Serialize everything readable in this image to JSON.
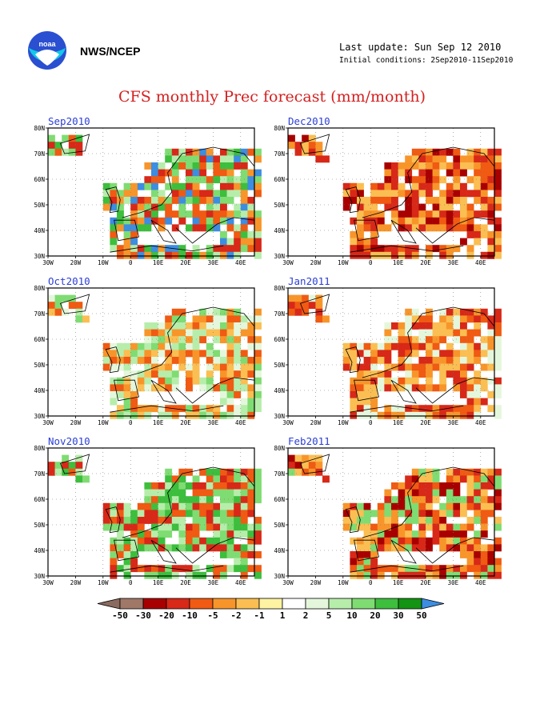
{
  "header": {
    "org_label": "NWS/NCEP",
    "last_update": "Last update: Sun Sep 12 2010",
    "initial_conditions": "Initial conditions: 2Sep2010-11Sep2010",
    "title": "CFS monthly Prec forecast (mm/month)"
  },
  "logo": {
    "icon": "noaa-logo-icon",
    "text": "noaa"
  },
  "axes": {
    "lon_labels": [
      "30W",
      "20W",
      "10W",
      "0",
      "10E",
      "20E",
      "30E",
      "40E"
    ],
    "lat_labels": [
      "30N",
      "40N",
      "50N",
      "60N",
      "70N",
      "80N"
    ]
  },
  "panels": [
    {
      "title": "Sep2010",
      "dominant": "mixed-green"
    },
    {
      "title": "Dec2010",
      "dominant": "red"
    },
    {
      "title": "Oct2010",
      "dominant": "light-green"
    },
    {
      "title": "Jan2011",
      "dominant": "orange"
    },
    {
      "title": "Nov2010",
      "dominant": "green"
    },
    {
      "title": "Feb2011",
      "dominant": "dark-red"
    }
  ],
  "colorbar": {
    "labels": [
      "-50",
      "-30",
      "-20",
      "-10",
      "-5",
      "-2",
      "-1",
      "1",
      "2",
      "5",
      "10",
      "20",
      "30",
      "50"
    ],
    "colors": [
      "#8b6b5f",
      "#a07868",
      "#a80000",
      "#d82818",
      "#f05a12",
      "#f8952a",
      "#fbbe52",
      "#fdf3a2",
      "#ffffff",
      "#e4f7dc",
      "#b7edab",
      "#7fdc72",
      "#3dbe3d",
      "#139413",
      "#3d8de0",
      "#3d8de0"
    ]
  },
  "colors": {
    "title": "#d42020",
    "panel_title": "#2b3fd8",
    "map_frame": "#000000"
  }
}
